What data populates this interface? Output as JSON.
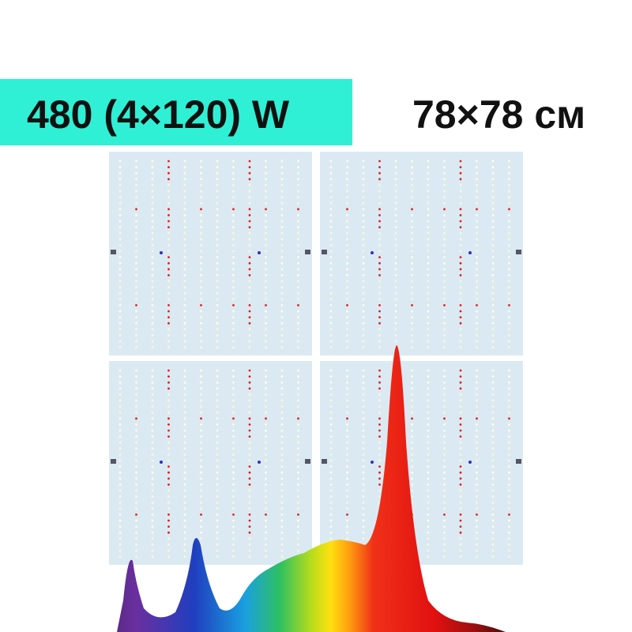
{
  "badge": {
    "power": "480 (4×120) W"
  },
  "size": "78×78 см"
}
